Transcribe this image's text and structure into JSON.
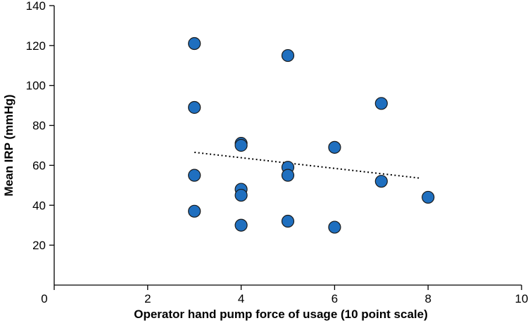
{
  "chart_data": {
    "type": "scatter",
    "xlabel": "Operator hand pump force of usage (10 point scale)",
    "ylabel": "Mean IRP (mmHg)",
    "xlim": [
      0,
      10
    ],
    "ylim": [
      0,
      140
    ],
    "xticks": [
      "0",
      "2",
      "4",
      "6",
      "8",
      "10"
    ],
    "yticks": [
      "20",
      "40",
      "60",
      "80",
      "100",
      "120",
      "140"
    ],
    "grid": false,
    "legend": "none",
    "points": [
      {
        "x": 3,
        "y": 121
      },
      {
        "x": 3,
        "y": 89
      },
      {
        "x": 3,
        "y": 55
      },
      {
        "x": 3,
        "y": 37
      },
      {
        "x": 4,
        "y": 71
      },
      {
        "x": 4,
        "y": 70
      },
      {
        "x": 4,
        "y": 48
      },
      {
        "x": 4,
        "y": 45
      },
      {
        "x": 4,
        "y": 30
      },
      {
        "x": 5,
        "y": 115
      },
      {
        "x": 5,
        "y": 59
      },
      {
        "x": 5,
        "y": 55
      },
      {
        "x": 5,
        "y": 32
      },
      {
        "x": 6,
        "y": 69
      },
      {
        "x": 6,
        "y": 29
      },
      {
        "x": 7,
        "y": 91
      },
      {
        "x": 7,
        "y": 52
      },
      {
        "x": 8,
        "y": 44
      }
    ],
    "trendline": {
      "style": "dotted",
      "x": [
        3,
        7.85
      ],
      "y": [
        66.5,
        53.5
      ]
    },
    "colors": {
      "point_fill": "#1f6fbf",
      "point_fill_overlap": "#0a3f8a",
      "point_edge": "#1a1a1a",
      "axis": "#000000"
    }
  }
}
